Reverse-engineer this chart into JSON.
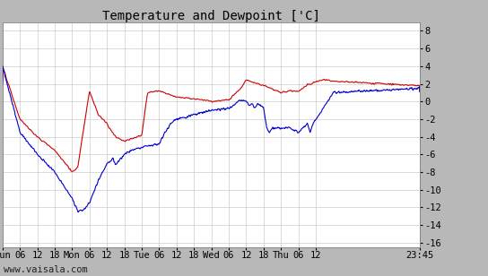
{
  "title": "Temperature and Dewpoint ['C]",
  "ylabel_right_ticks": [
    8,
    6,
    4,
    2,
    0,
    -2,
    -4,
    -6,
    -8,
    -10,
    -12,
    -14,
    -16
  ],
  "ylim": [
    -16.5,
    9.0
  ],
  "xlim_start": 0,
  "xlim_end": 5.99,
  "x_tick_labels": [
    "Sun",
    "06",
    "12",
    "18",
    "Mon",
    "06",
    "12",
    "18",
    "Tue",
    "06",
    "12",
    "18",
    "Wed",
    "06",
    "12",
    "18",
    "Thu",
    "06",
    "12",
    "23:45"
  ],
  "x_tick_positions": [
    0,
    0.25,
    0.5,
    0.75,
    1.0,
    1.25,
    1.5,
    1.75,
    2.0,
    2.25,
    2.5,
    2.75,
    3.0,
    3.25,
    3.5,
    3.75,
    4.0,
    4.25,
    4.5,
    5.99
  ],
  "grid_color": "#cccccc",
  "background_color": "#ffffff",
  "outer_background": "#b8b8b8",
  "temp_color": "#cc0000",
  "dew_color": "#0000cc",
  "watermark": "www.vaisala.com",
  "title_fontsize": 10,
  "tick_fontsize": 7.5,
  "watermark_fontsize": 7.5,
  "line_width": 0.8
}
